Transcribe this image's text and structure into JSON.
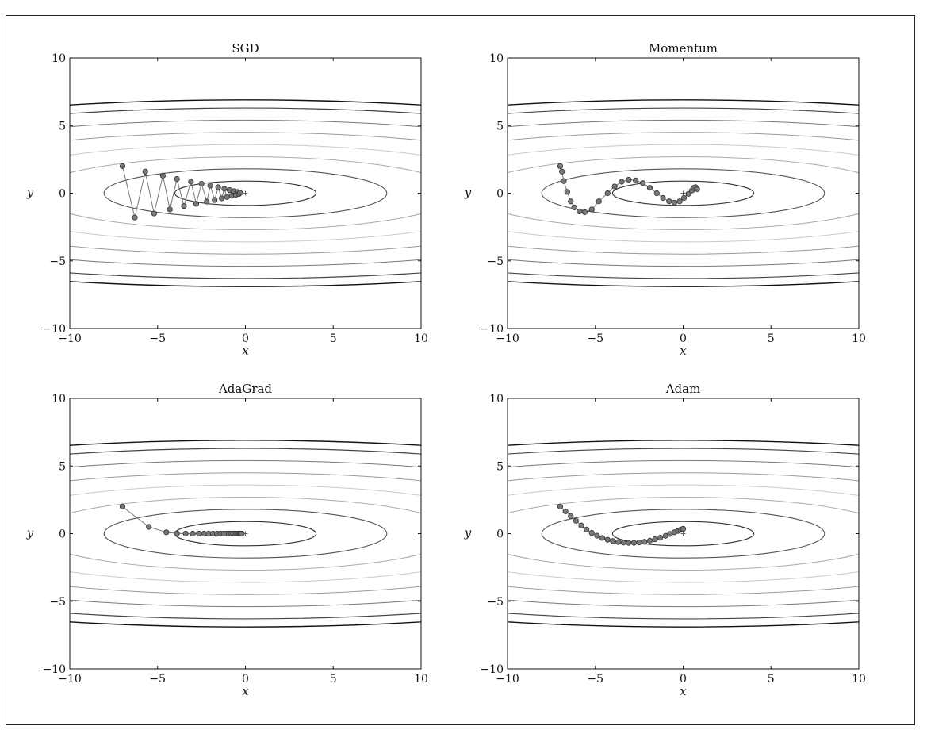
{
  "chart_data": [
    {
      "type": "line",
      "title": "SGD",
      "xlabel": "x",
      "ylabel": "y",
      "xlim": [
        -10,
        10
      ],
      "ylim": [
        -10,
        10
      ],
      "xticks": [
        -10,
        -5,
        0,
        5,
        10
      ],
      "yticks": [
        -10,
        -5,
        0,
        5,
        10
      ],
      "minimum": [
        0,
        0
      ],
      "path": [
        [
          -7.0,
          2.0
        ],
        [
          -6.3,
          -1.8
        ],
        [
          -5.7,
          1.6
        ],
        [
          -5.2,
          -1.5
        ],
        [
          -4.7,
          1.3
        ],
        [
          -4.3,
          -1.2
        ],
        [
          -3.9,
          1.05
        ],
        [
          -3.5,
          -0.95
        ],
        [
          -3.1,
          0.85
        ],
        [
          -2.8,
          -0.78
        ],
        [
          -2.5,
          0.7
        ],
        [
          -2.2,
          -0.62
        ],
        [
          -2.0,
          0.56
        ],
        [
          -1.75,
          -0.5
        ],
        [
          -1.55,
          0.44
        ],
        [
          -1.35,
          -0.38
        ],
        [
          -1.2,
          0.33
        ],
        [
          -1.05,
          -0.28
        ],
        [
          -0.9,
          0.23
        ],
        [
          -0.78,
          -0.19
        ],
        [
          -0.66,
          0.15
        ],
        [
          -0.55,
          -0.12
        ],
        [
          -0.45,
          0.09
        ],
        [
          -0.37,
          -0.06
        ],
        [
          -0.3,
          0.03
        ]
      ]
    },
    {
      "type": "line",
      "title": "Momentum",
      "xlabel": "x",
      "ylabel": "y",
      "xlim": [
        -10,
        10
      ],
      "ylim": [
        -10,
        10
      ],
      "xticks": [
        -10,
        -5,
        0,
        5,
        10
      ],
      "yticks": [
        -10,
        -5,
        0,
        5,
        10
      ],
      "minimum": [
        0,
        0
      ],
      "path": [
        [
          -7.0,
          2.0
        ],
        [
          -6.9,
          1.6
        ],
        [
          -6.8,
          0.9
        ],
        [
          -6.6,
          0.1
        ],
        [
          -6.4,
          -0.6
        ],
        [
          -6.2,
          -1.05
        ],
        [
          -5.9,
          -1.35
        ],
        [
          -5.6,
          -1.4
        ],
        [
          -5.2,
          -1.2
        ],
        [
          -4.8,
          -0.6
        ],
        [
          -4.3,
          0.0
        ],
        [
          -3.9,
          0.5
        ],
        [
          -3.5,
          0.85
        ],
        [
          -3.1,
          1.0
        ],
        [
          -2.7,
          0.95
        ],
        [
          -2.3,
          0.75
        ],
        [
          -1.9,
          0.4
        ],
        [
          -1.5,
          0.0
        ],
        [
          -1.15,
          -0.35
        ],
        [
          -0.8,
          -0.6
        ],
        [
          -0.5,
          -0.7
        ],
        [
          -0.2,
          -0.6
        ],
        [
          0.05,
          -0.35
        ],
        [
          0.3,
          -0.05
        ],
        [
          0.5,
          0.2
        ],
        [
          0.6,
          0.4
        ],
        [
          0.7,
          0.45
        ],
        [
          0.8,
          0.3
        ]
      ]
    },
    {
      "type": "line",
      "title": "AdaGrad",
      "xlabel": "x",
      "ylabel": "y",
      "xlim": [
        -10,
        10
      ],
      "ylim": [
        -10,
        10
      ],
      "xticks": [
        -10,
        -5,
        0,
        5,
        10
      ],
      "yticks": [
        -10,
        -5,
        0,
        5,
        10
      ],
      "minimum": [
        0,
        0
      ],
      "path": [
        [
          -7.0,
          2.0
        ],
        [
          -5.5,
          0.5
        ],
        [
          -4.5,
          0.1
        ],
        [
          -3.9,
          0.02
        ],
        [
          -3.4,
          0.0
        ],
        [
          -3.0,
          0.0
        ],
        [
          -2.65,
          0.0
        ],
        [
          -2.35,
          0.0
        ],
        [
          -2.1,
          0.0
        ],
        [
          -1.85,
          0.0
        ],
        [
          -1.62,
          0.0
        ],
        [
          -1.42,
          0.0
        ],
        [
          -1.24,
          0.0
        ],
        [
          -1.08,
          0.0
        ],
        [
          -0.94,
          0.0
        ],
        [
          -0.82,
          0.0
        ],
        [
          -0.71,
          0.0
        ],
        [
          -0.61,
          0.0
        ],
        [
          -0.52,
          0.0
        ],
        [
          -0.44,
          0.0
        ],
        [
          -0.37,
          0.0
        ],
        [
          -0.31,
          0.0
        ],
        [
          -0.26,
          0.0
        ],
        [
          -0.21,
          0.0
        ]
      ]
    },
    {
      "type": "line",
      "title": "Adam",
      "xlabel": "x",
      "ylabel": "y",
      "xlim": [
        -10,
        10
      ],
      "ylim": [
        -10,
        10
      ],
      "xticks": [
        -10,
        -5,
        0,
        5,
        10
      ],
      "yticks": [
        -10,
        -5,
        0,
        5,
        10
      ],
      "minimum": [
        0,
        0
      ],
      "path": [
        [
          -7.0,
          2.0
        ],
        [
          -6.7,
          1.65
        ],
        [
          -6.4,
          1.3
        ],
        [
          -6.1,
          0.95
        ],
        [
          -5.8,
          0.6
        ],
        [
          -5.5,
          0.3
        ],
        [
          -5.2,
          0.05
        ],
        [
          -4.9,
          -0.15
        ],
        [
          -4.6,
          -0.32
        ],
        [
          -4.3,
          -0.45
        ],
        [
          -4.0,
          -0.55
        ],
        [
          -3.7,
          -0.62
        ],
        [
          -3.4,
          -0.66
        ],
        [
          -3.1,
          -0.68
        ],
        [
          -2.8,
          -0.68
        ],
        [
          -2.5,
          -0.65
        ],
        [
          -2.2,
          -0.6
        ],
        [
          -1.9,
          -0.52
        ],
        [
          -1.6,
          -0.42
        ],
        [
          -1.3,
          -0.3
        ],
        [
          -1.0,
          -0.16
        ],
        [
          -0.75,
          -0.02
        ],
        [
          -0.5,
          0.1
        ],
        [
          -0.3,
          0.2
        ],
        [
          -0.15,
          0.28
        ],
        [
          -0.05,
          0.33
        ],
        [
          0.0,
          0.35
        ]
      ]
    }
  ]
}
